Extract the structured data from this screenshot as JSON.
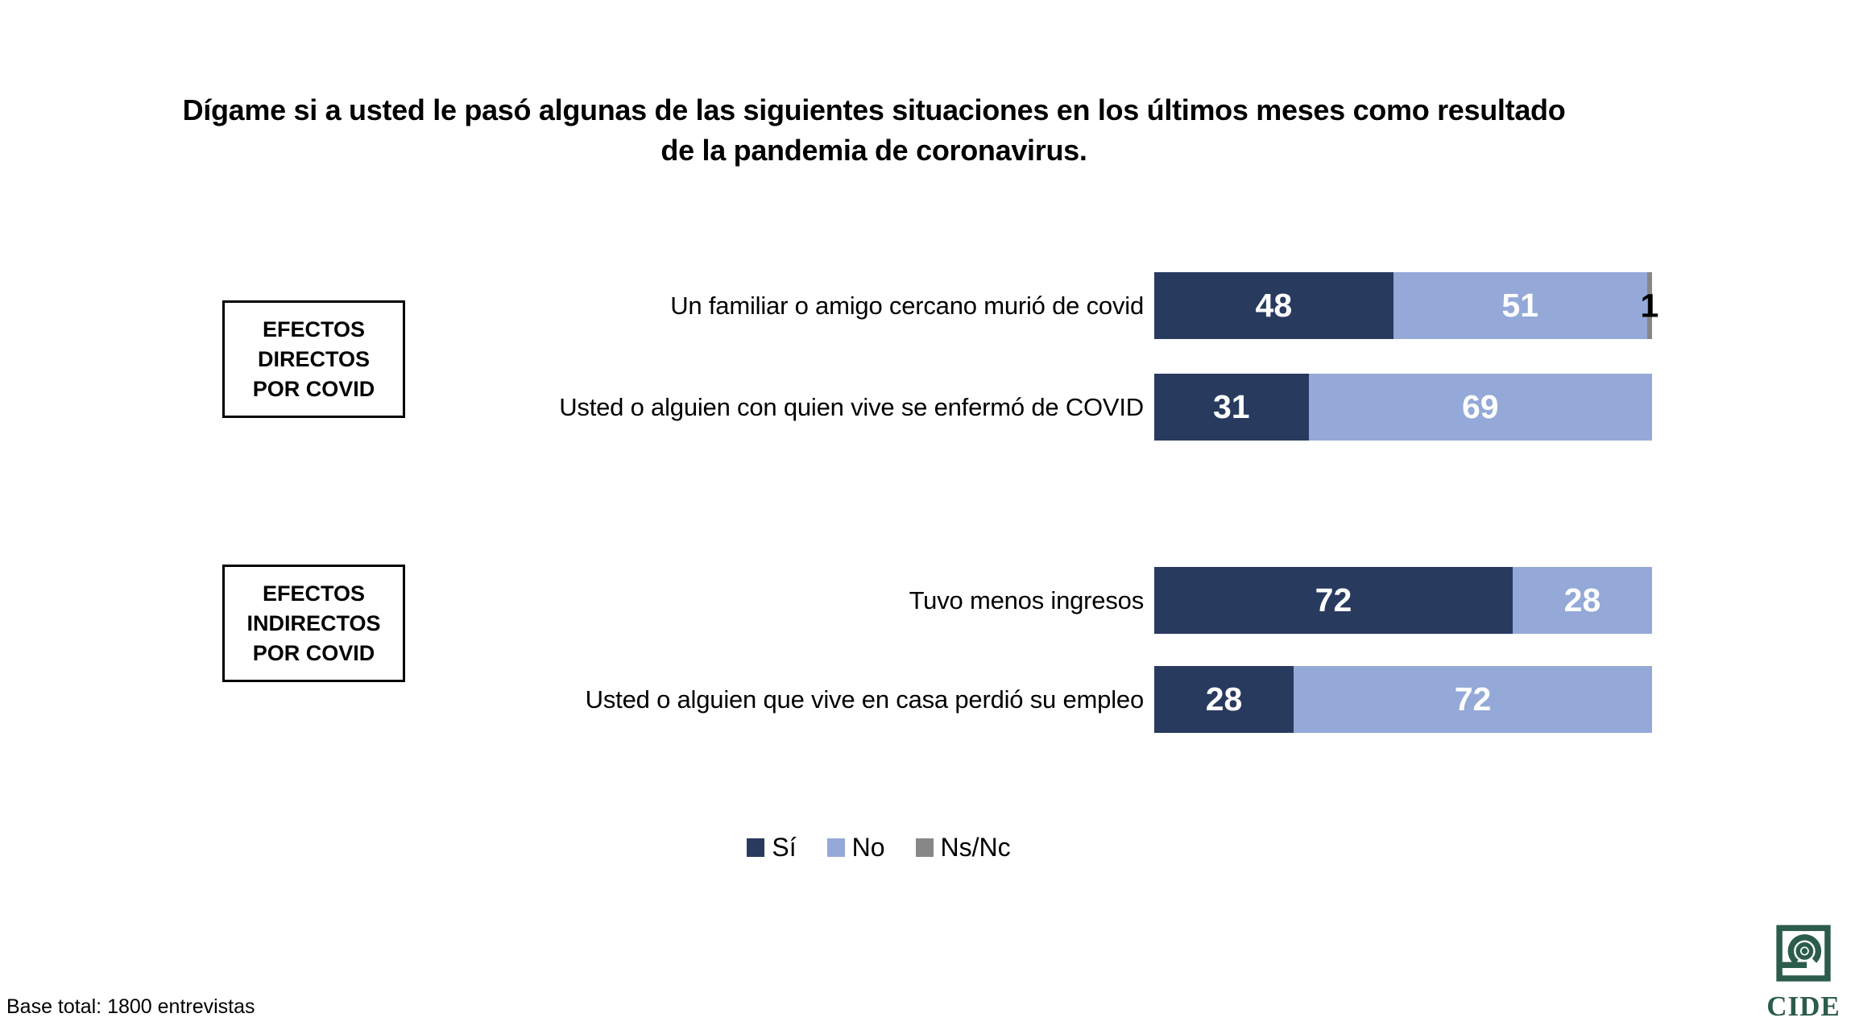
{
  "title": "Dígame si a usted le pasó algunas de las siguientes situaciones en los últimos meses como resultado de la pandemia de coronavirus.",
  "groups": [
    {
      "label": "EFECTOS\nDIRECTOS\nPOR COVID"
    },
    {
      "label": "EFECTOS\nINDIRECTOS\nPOR COVID"
    }
  ],
  "chart_data": {
    "type": "bar",
    "orientation": "horizontal_stacked",
    "unit": "percent",
    "xlim": [
      0,
      100
    ],
    "series": [
      "Sí",
      "No",
      "Ns/Nc"
    ],
    "rows": [
      {
        "group": "EFECTOS DIRECTOS POR COVID",
        "label": "Un familiar o amigo cercano murió de covid",
        "values": [
          48,
          51,
          1
        ]
      },
      {
        "group": "EFECTOS DIRECTOS POR COVID",
        "label": "Usted o alguien con quien vive se enfermó de COVID",
        "values": [
          31,
          69
        ]
      },
      {
        "group": "EFECTOS INDIRECTOS POR COVID",
        "label": "Tuvo menos ingresos",
        "values": [
          72,
          28
        ]
      },
      {
        "group": "EFECTOS INDIRECTOS POR COVID",
        "label": "Usted o alguien que vive en casa perdió su empleo",
        "values": [
          28,
          72
        ]
      }
    ],
    "legend_position": "bottom-center",
    "grid": "off"
  },
  "legend": {
    "items": [
      {
        "label": "Sí",
        "color": "#293A5F"
      },
      {
        "label": "No",
        "color": "#94A9D8"
      },
      {
        "label": "Ns/Nc",
        "color": "#878787"
      }
    ]
  },
  "footnote": "Base total: 1800 entrevistas",
  "logo": {
    "text": "CIDE",
    "color": "#2C5C4C"
  }
}
